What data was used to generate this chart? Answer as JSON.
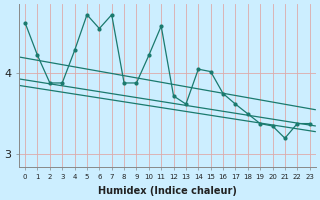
{
  "xlabel": "Humidex (Indice chaleur)",
  "background_color": "#cceeff",
  "line_color": "#1a7a6e",
  "x_values": [
    0,
    1,
    2,
    3,
    4,
    5,
    6,
    7,
    8,
    9,
    10,
    11,
    12,
    13,
    14,
    15,
    16,
    17,
    18,
    19,
    20,
    21,
    22,
    23
  ],
  "main_line": [
    4.62,
    4.22,
    3.88,
    3.88,
    4.28,
    4.72,
    4.55,
    4.72,
    3.88,
    3.88,
    4.22,
    4.58,
    3.72,
    3.62,
    4.05,
    4.02,
    3.75,
    3.62,
    3.5,
    3.38,
    3.35,
    3.2,
    3.38,
    3.38
  ],
  "trend_upper": [
    4.2,
    3.55
  ],
  "trend_mid": [
    3.93,
    3.35
  ],
  "trend_lower": [
    3.85,
    3.28
  ],
  "ylim": [
    2.85,
    4.85
  ],
  "yticks": [
    3,
    4
  ],
  "grid_v_color": "#ddaaaa",
  "grid_h_color": "#ddaaaa"
}
